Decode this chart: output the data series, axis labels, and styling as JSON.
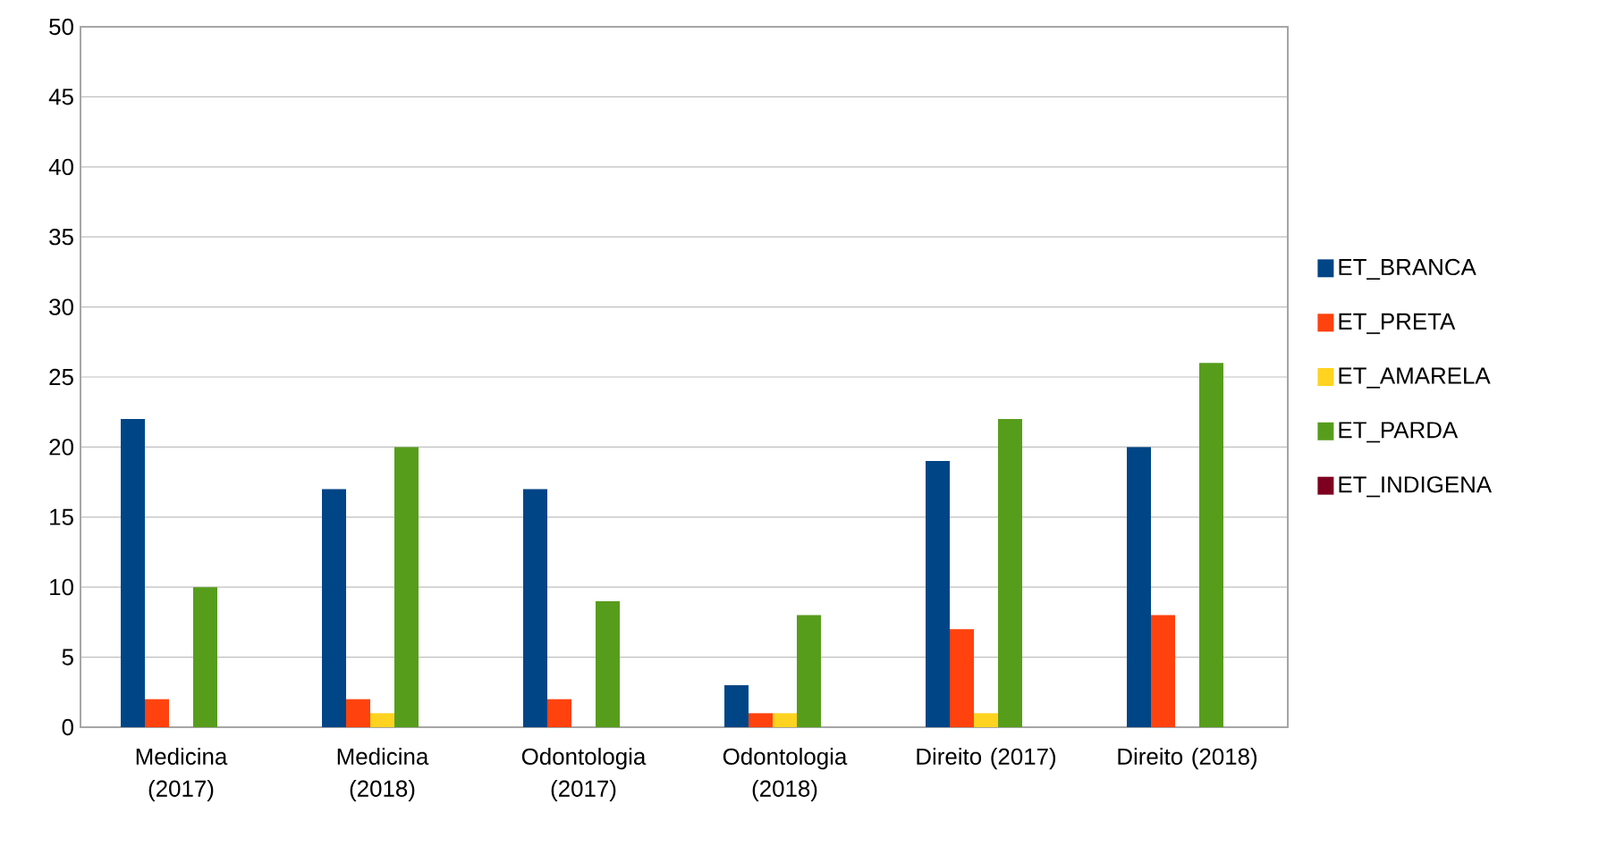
{
  "chart_data": {
    "type": "bar",
    "categories": [
      "Medicina (2017)",
      "Medicina (2018)",
      "Odontologia (2017)",
      "Odontologia (2018)",
      "Direito (2017)",
      "Direito (2018)"
    ],
    "series": [
      {
        "name": "ET_BRANCA",
        "color": "#004586",
        "values": [
          22,
          17,
          17,
          3,
          19,
          20
        ]
      },
      {
        "name": "ET_PRETA",
        "color": "#ff420e",
        "values": [
          2,
          2,
          2,
          1,
          7,
          8
        ]
      },
      {
        "name": "ET_AMARELA",
        "color": "#ffd320",
        "values": [
          0,
          1,
          0,
          1,
          1,
          0
        ]
      },
      {
        "name": "ET_PARDA",
        "color": "#579d1c",
        "values": [
          10,
          20,
          9,
          8,
          22,
          26
        ]
      },
      {
        "name": "ET_INDIGENA",
        "color": "#7e0021",
        "values": [
          0,
          0,
          0,
          0,
          0,
          0
        ]
      }
    ],
    "ylim": [
      0,
      50
    ],
    "yticks": [
      0,
      5,
      10,
      15,
      20,
      25,
      30,
      35,
      40,
      45,
      50
    ],
    "grid": "y",
    "legend": "right"
  }
}
